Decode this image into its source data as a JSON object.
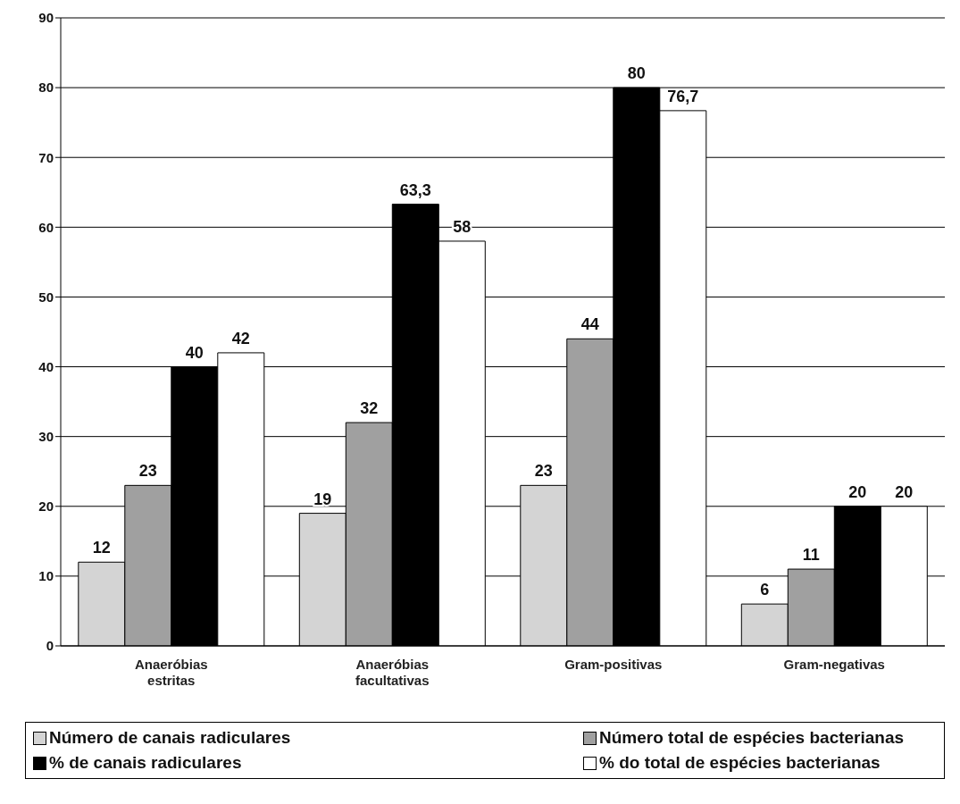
{
  "chart_data": {
    "type": "bar",
    "categories": [
      "Anaeróbias estritas",
      "Anaeróbias facultativas",
      "Gram-positivas",
      "Gram-negativas"
    ],
    "series": [
      {
        "name": "Número de canais radiculares",
        "color": "#d4d4d4",
        "values": [
          12,
          19,
          23,
          6
        ],
        "value_labels": [
          "12",
          "19",
          "23",
          "6"
        ]
      },
      {
        "name": "Número total de espécies bacterianas",
        "color": "#a0a0a0",
        "values": [
          23,
          32,
          44,
          11
        ],
        "value_labels": [
          "23",
          "32",
          "44",
          "11"
        ]
      },
      {
        "name": "% de canais radiculares",
        "color": "#000000",
        "values": [
          40,
          63.3,
          80,
          20
        ],
        "value_labels": [
          "40",
          "63,3",
          "80",
          "20"
        ]
      },
      {
        "name": "% do total de espécies bacterianas",
        "color": "#ffffff",
        "values": [
          42,
          58,
          76.7,
          20
        ],
        "value_labels": [
          "42",
          "58",
          "76,7",
          "20"
        ]
      }
    ],
    "ylim": [
      0,
      90
    ],
    "yticks": [
      0,
      10,
      20,
      30,
      40,
      50,
      60,
      70,
      80,
      90
    ],
    "grid": "y",
    "legend": "bottom"
  }
}
